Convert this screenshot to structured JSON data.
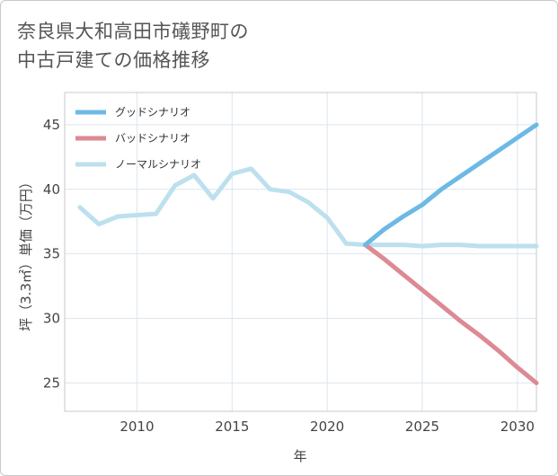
{
  "title": {
    "line1": "奈良県大和高田市礒野町の",
    "line2": "中古戸建ての価格推移"
  },
  "colors": {
    "good": "#6cb9e6",
    "bad": "#dc8a93",
    "normal": "#bde0ee",
    "grid": "#dbe6ee",
    "frame": "#c8c8c8"
  },
  "chart_data": {
    "type": "line",
    "title": "奈良県大和高田市礒野町の中古戸建ての価格推移",
    "xlabel": "年",
    "ylabel": "坪（3.3㎡）単価（万円）",
    "xlim": [
      2006.2,
      2031
    ],
    "ylim": [
      22.8,
      47.5
    ],
    "xticks": [
      2010,
      2015,
      2020,
      2025,
      2030
    ],
    "yticks": [
      25,
      30,
      35,
      40,
      45
    ],
    "legend": {
      "position": "top-left",
      "entries": [
        "グッドシナリオ",
        "バッドシナリオ",
        "ノーマルシナリオ"
      ]
    },
    "series": [
      {
        "name": "グッドシナリオ",
        "color_key": "good",
        "x": [
          2022,
          2023,
          2024,
          2025,
          2026,
          2027,
          2028,
          2029,
          2030,
          2031
        ],
        "values": [
          35.7,
          36.9,
          37.9,
          38.8,
          40.0,
          41.0,
          42.0,
          43.0,
          44.0,
          45.0
        ]
      },
      {
        "name": "バッドシナリオ",
        "color_key": "bad",
        "x": [
          2022,
          2023,
          2024,
          2025,
          2026,
          2027,
          2028,
          2029,
          2030,
          2031
        ],
        "values": [
          35.7,
          34.6,
          33.4,
          32.2,
          31.0,
          29.8,
          28.7,
          27.5,
          26.2,
          25.0
        ]
      },
      {
        "name": "ノーマルシナリオ",
        "color_key": "normal",
        "x": [
          2007,
          2008,
          2009,
          2010,
          2011,
          2012,
          2013,
          2014,
          2015,
          2016,
          2017,
          2018,
          2019,
          2020,
          2021,
          2022,
          2023,
          2024,
          2025,
          2026,
          2027,
          2028,
          2029,
          2030,
          2031
        ],
        "values": [
          38.6,
          37.3,
          37.9,
          38.0,
          38.1,
          40.3,
          41.1,
          39.3,
          41.2,
          41.6,
          40.0,
          39.8,
          39.0,
          37.8,
          35.8,
          35.7,
          35.7,
          35.7,
          35.6,
          35.7,
          35.7,
          35.6,
          35.6,
          35.6,
          35.6
        ]
      }
    ]
  }
}
